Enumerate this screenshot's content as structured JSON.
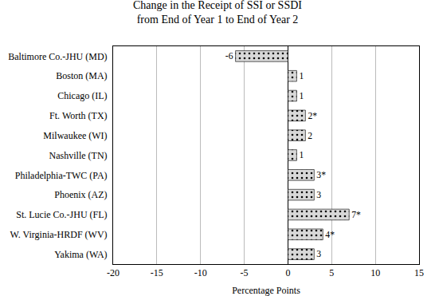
{
  "chart_data": {
    "type": "bar",
    "orientation": "horizontal",
    "title": "Change in the Receipt of SSI or SSDI\nfrom End of Year 1 to End of Year 2",
    "categories": [
      "Baltimore Co.-JHU (MD)",
      "Boston (MA)",
      "Chicago (IL)",
      "Ft. Worth (TX)",
      "Milwaukee (WI)",
      "Nashville (TN)",
      "Philadelphia-TWC (PA)",
      "Phoenix (AZ)",
      "St. Lucie Co.-JHU (FL)",
      "W. Virginia-HRDF (WV)",
      "Yakima (WA)"
    ],
    "values": [
      -6,
      1,
      1,
      2,
      2,
      1,
      3,
      3,
      7,
      4,
      3
    ],
    "value_labels": [
      "-6",
      "1",
      "1",
      "2*",
      "2",
      "1",
      "3*",
      "3",
      "7*",
      "4*",
      "3"
    ],
    "data_labels": true,
    "xlabel": "Percentage Points",
    "xlim": [
      -20,
      15
    ],
    "xticks": [
      -20,
      -15,
      -10,
      -5,
      0,
      5,
      10,
      15
    ],
    "color": "#d8d8d8",
    "grid": true
  }
}
